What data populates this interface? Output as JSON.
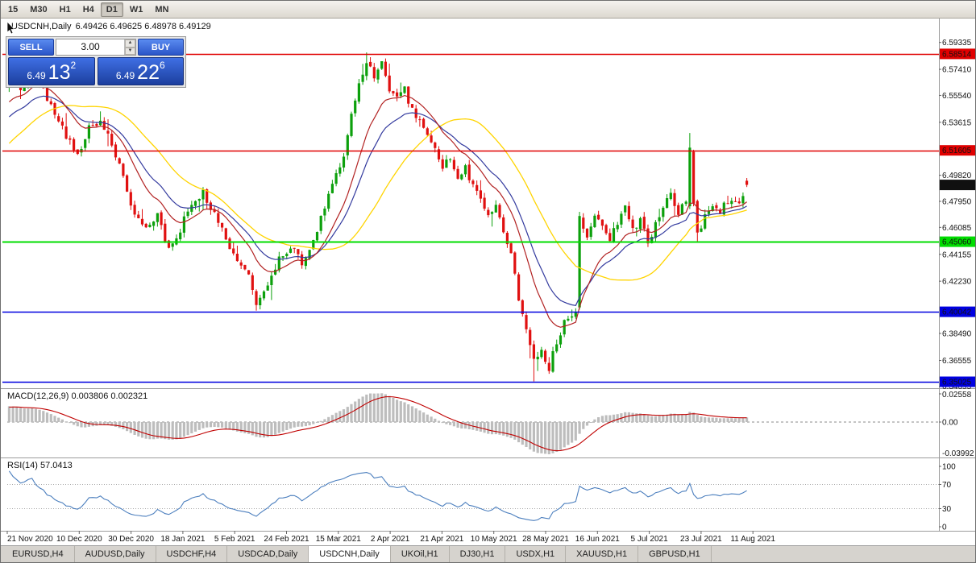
{
  "toolbar": {
    "timeframes": [
      {
        "label": "15",
        "active": false
      },
      {
        "label": "M30",
        "active": false
      },
      {
        "label": "H1",
        "active": false
      },
      {
        "label": "H4",
        "active": false
      },
      {
        "label": "D1",
        "active": true
      },
      {
        "label": "W1",
        "active": false
      },
      {
        "label": "MN",
        "active": false
      }
    ]
  },
  "trade_panel": {
    "sell_label": "SELL",
    "buy_label": "BUY",
    "volume": "3.00",
    "spin_up_icon": "▲",
    "spin_down_icon": "▼",
    "sell_price": {
      "prefix": "6.49",
      "big": "13",
      "sup": "2"
    },
    "buy_price": {
      "prefix": "6.49",
      "big": "22",
      "sup": "6"
    }
  },
  "chart": {
    "title": "USDCNH,Daily",
    "ohlc": "6.49426 6.49625 6.48978 6.49129",
    "macd_label": "MACD(12,26,9) 0.003806 0.002321",
    "rsi_label": "RSI(14) 57.0413"
  },
  "chart_data": {
    "type": "candlestick",
    "symbol": "USDCNH",
    "timeframe": "Daily",
    "current_bar": {
      "open": 6.49426,
      "high": 6.49625,
      "low": 6.48978,
      "close": 6.49129
    },
    "last_price": 6.49129,
    "y_axis": {
      "min": 6.34564,
      "max": 6.60932,
      "labels": [
        6.59335,
        6.5741,
        6.5554,
        6.53615,
        6.4982,
        6.4795,
        6.46085,
        6.44155,
        6.4223,
        6.3849,
        6.36555,
        6.34695
      ]
    },
    "x_axis": {
      "labels": [
        "21 Nov 2020",
        "10 Dec 2020",
        "30 Dec 2020",
        "18 Jan 2021",
        "5 Feb 2021",
        "24 Feb 2021",
        "15 Mar 2021",
        "2 Apr 2021",
        "21 Apr 2021",
        "10 May 2021",
        "28 May 2021",
        "16 Jun 2021",
        "5 Jul 2021",
        "23 Jul 2021",
        "11 Aug 2021"
      ]
    },
    "levels": [
      {
        "price": 6.58514,
        "color": "#E00000",
        "label": "6.58514",
        "text": "#FFFFFF"
      },
      {
        "price": 6.51605,
        "color": "#E00000",
        "label": "6.51605",
        "text": "#FFFFFF"
      },
      {
        "price": 6.4506,
        "color": "#00DD00",
        "label": "6.45060",
        "text": "#000000"
      },
      {
        "price": 6.40042,
        "color": "#0000E0",
        "label": "6.40042",
        "text": "#FFFFFF"
      },
      {
        "price": 6.35025,
        "color": "#0000E0",
        "label": "6.35025",
        "text": "#FFFFFF"
      }
    ],
    "moving_averages": [
      {
        "name": "sma-34",
        "color": "#FFD400"
      },
      {
        "name": "ema-13",
        "color": "#B22222"
      },
      {
        "name": "ema-21",
        "color": "#333A9E"
      }
    ],
    "candle_count": 195,
    "close_anchors": [
      [
        0,
        6.571
      ],
      [
        3,
        6.5565
      ],
      [
        6,
        6.5745
      ],
      [
        9,
        6.558
      ],
      [
        12,
        6.5425
      ],
      [
        15,
        6.5255
      ],
      [
        18,
        6.5135
      ],
      [
        21,
        6.532
      ],
      [
        24,
        6.5375
      ],
      [
        27,
        6.52
      ],
      [
        30,
        6.4955
      ],
      [
        33,
        6.468
      ],
      [
        36,
        6.458
      ],
      [
        39,
        6.4685
      ],
      [
        42,
        6.4455
      ],
      [
        45,
        6.46
      ],
      [
        48,
        6.478
      ],
      [
        51,
        6.486
      ],
      [
        54,
        6.47
      ],
      [
        57,
        6.4525
      ],
      [
        60,
        6.4395
      ],
      [
        63,
        6.4245
      ],
      [
        65,
        6.406
      ],
      [
        68,
        6.418
      ],
      [
        71,
        6.44
      ],
      [
        74,
        6.446
      ],
      [
        77,
        6.436
      ],
      [
        80,
        6.452
      ],
      [
        83,
        6.474
      ],
      [
        86,
        6.5
      ],
      [
        88,
        6.512
      ],
      [
        90,
        6.54
      ],
      [
        92,
        6.5655
      ],
      [
        94,
        6.58
      ],
      [
        96,
        6.568
      ],
      [
        98,
        6.5775
      ],
      [
        100,
        6.56
      ],
      [
        102,
        6.553
      ],
      [
        104,
        6.5595
      ],
      [
        106,
        6.545
      ],
      [
        108,
        6.536
      ],
      [
        110,
        6.528
      ],
      [
        112,
        6.515
      ],
      [
        114,
        6.505
      ],
      [
        116,
        6.512
      ],
      [
        118,
        6.498
      ],
      [
        120,
        6.503
      ],
      [
        122,
        6.49
      ],
      [
        124,
        6.48
      ],
      [
        126,
        6.47
      ],
      [
        128,
        6.477
      ],
      [
        130,
        6.455
      ],
      [
        132,
        6.44
      ],
      [
        134,
        6.41
      ],
      [
        136,
        6.385
      ],
      [
        138,
        6.365
      ],
      [
        140,
        6.372
      ],
      [
        142,
        6.36
      ],
      [
        144,
        6.38
      ],
      [
        146,
        6.392
      ],
      [
        148,
        6.398
      ],
      [
        149,
        6.402
      ],
      [
        150,
        6.469
      ],
      [
        152,
        6.455
      ],
      [
        154,
        6.47
      ],
      [
        156,
        6.462
      ],
      [
        158,
        6.45
      ],
      [
        160,
        6.465
      ],
      [
        162,
        6.478
      ],
      [
        164,
        6.458
      ],
      [
        166,
        6.468
      ],
      [
        168,
        6.448
      ],
      [
        170,
        6.462
      ],
      [
        172,
        6.476
      ],
      [
        174,
        6.486
      ],
      [
        176,
        6.47
      ],
      [
        178,
        6.482
      ],
      [
        179,
        6.518
      ],
      [
        180,
        6.478
      ],
      [
        181,
        6.458
      ],
      [
        183,
        6.468
      ],
      [
        185,
        6.477
      ],
      [
        187,
        6.474
      ],
      [
        189,
        6.478
      ],
      [
        191,
        6.477
      ],
      [
        193,
        6.484
      ],
      [
        194,
        6.49129
      ]
    ],
    "macd": {
      "settings": "12,26,9",
      "main": 0.003806,
      "signal": 0.002321,
      "axis_labels": [
        "0.02558",
        "0.00",
        "-0.03992"
      ]
    },
    "rsi": {
      "period": 14,
      "value": 57.0413,
      "axis_labels": [
        "100",
        "70",
        "30",
        "0"
      ],
      "levels": [
        70,
        30
      ]
    }
  },
  "tabs": [
    {
      "label": "EURUSD,H4",
      "active": false
    },
    {
      "label": "AUDUSD,Daily",
      "active": false
    },
    {
      "label": "USDCHF,H4",
      "active": false
    },
    {
      "label": "USDCAD,Daily",
      "active": false
    },
    {
      "label": "USDCNH,Daily",
      "active": true
    },
    {
      "label": "UKOil,H1",
      "active": false
    },
    {
      "label": "DJ30,H1",
      "active": false
    },
    {
      "label": "USDX,H1",
      "active": false
    },
    {
      "label": "XAUUSD,H1",
      "active": false
    },
    {
      "label": "GBPUSD,H1",
      "active": false
    }
  ]
}
